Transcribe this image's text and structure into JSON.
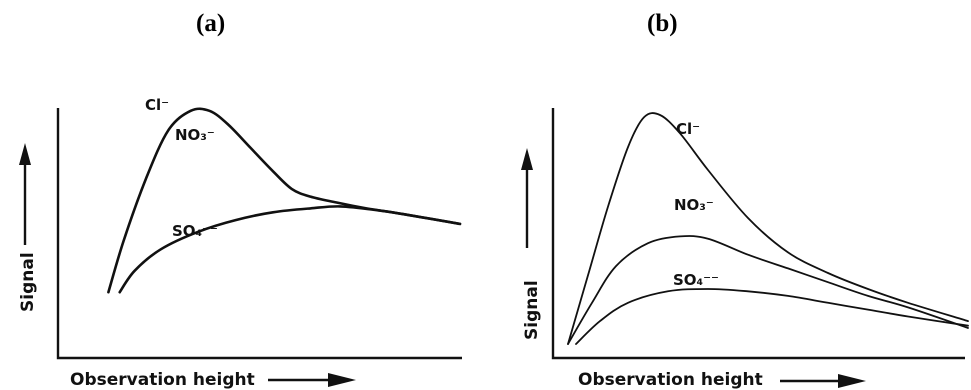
{
  "chart_data": [
    {
      "type": "line",
      "panel_label": "(a)",
      "xlabel": "Observation height",
      "ylabel": "Signal",
      "ticks": "none",
      "grid": false,
      "legend": "curve-labels",
      "series": [
        {
          "name": "Cl⁻",
          "label_text": "Cl⁻",
          "points": [
            [
              0.06,
              0.04
            ],
            [
              0.1,
              0.3
            ],
            [
              0.16,
              0.62
            ],
            [
              0.22,
              0.87
            ],
            [
              0.28,
              0.97
            ],
            [
              0.33,
              0.97
            ],
            [
              0.38,
              0.9
            ],
            [
              0.44,
              0.78
            ],
            [
              0.5,
              0.66
            ],
            [
              0.55,
              0.57
            ],
            [
              0.6,
              0.53
            ],
            [
              0.67,
              0.5
            ],
            [
              0.75,
              0.47
            ],
            [
              0.85,
              0.44
            ],
            [
              1.0,
              0.39
            ]
          ]
        },
        {
          "name": "NO₃⁻",
          "label_text": "NO₃⁻",
          "points": [
            [
              0.06,
              0.04
            ],
            [
              0.1,
              0.3
            ],
            [
              0.16,
              0.62
            ],
            [
              0.22,
              0.87
            ],
            [
              0.28,
              0.97
            ],
            [
              0.33,
              0.97
            ],
            [
              0.38,
              0.9
            ],
            [
              0.44,
              0.78
            ],
            [
              0.5,
              0.66
            ],
            [
              0.55,
              0.57
            ],
            [
              0.6,
              0.53
            ],
            [
              0.67,
              0.5
            ],
            [
              0.75,
              0.47
            ],
            [
              0.85,
              0.44
            ],
            [
              1.0,
              0.39
            ]
          ]
        },
        {
          "name": "SO₄⁻⁻",
          "label_text": "SO₄⁻⁻",
          "points": [
            [
              0.09,
              0.04
            ],
            [
              0.13,
              0.15
            ],
            [
              0.2,
              0.26
            ],
            [
              0.3,
              0.35
            ],
            [
              0.4,
              0.41
            ],
            [
              0.5,
              0.45
            ],
            [
              0.6,
              0.47
            ],
            [
              0.68,
              0.48
            ],
            [
              0.78,
              0.46
            ],
            [
              0.88,
              0.43
            ],
            [
              1.0,
              0.39
            ]
          ]
        }
      ]
    },
    {
      "type": "line",
      "panel_label": "(b)",
      "xlabel": "Observation height",
      "ylabel": "Signal",
      "ticks": "none",
      "grid": false,
      "legend": "curve-labels",
      "series": [
        {
          "name": "Cl⁻",
          "label_text": "Cl⁻",
          "points": [
            [
              0.0,
              0.0
            ],
            [
              0.05,
              0.3
            ],
            [
              0.1,
              0.6
            ],
            [
              0.15,
              0.86
            ],
            [
              0.19,
              0.99
            ],
            [
              0.23,
              1.0
            ],
            [
              0.28,
              0.92
            ],
            [
              0.35,
              0.76
            ],
            [
              0.45,
              0.55
            ],
            [
              0.55,
              0.4
            ],
            [
              0.65,
              0.31
            ],
            [
              0.75,
              0.24
            ],
            [
              0.85,
              0.18
            ],
            [
              1.0,
              0.1
            ]
          ]
        },
        {
          "name": "NO₃⁻",
          "label_text": "NO₃⁻",
          "points": [
            [
              0.0,
              0.0
            ],
            [
              0.06,
              0.18
            ],
            [
              0.12,
              0.34
            ],
            [
              0.2,
              0.44
            ],
            [
              0.28,
              0.47
            ],
            [
              0.35,
              0.46
            ],
            [
              0.45,
              0.39
            ],
            [
              0.55,
              0.33
            ],
            [
              0.65,
              0.27
            ],
            [
              0.75,
              0.21
            ],
            [
              0.85,
              0.16
            ],
            [
              1.0,
              0.07
            ]
          ]
        },
        {
          "name": "SO₄⁻⁻",
          "label_text": "SO₄⁻⁻",
          "points": [
            [
              0.02,
              0.0
            ],
            [
              0.08,
              0.1
            ],
            [
              0.15,
              0.18
            ],
            [
              0.25,
              0.23
            ],
            [
              0.35,
              0.24
            ],
            [
              0.45,
              0.23
            ],
            [
              0.55,
              0.21
            ],
            [
              0.65,
              0.18
            ],
            [
              0.75,
              0.15
            ],
            [
              0.85,
              0.12
            ],
            [
              1.0,
              0.08
            ]
          ]
        }
      ]
    }
  ]
}
